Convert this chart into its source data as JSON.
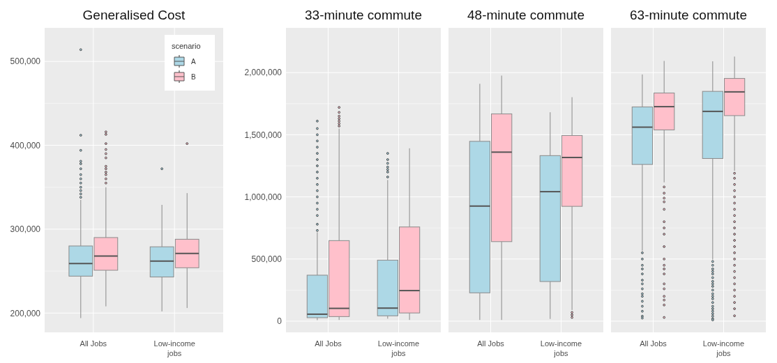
{
  "chart_data": [
    {
      "type": "box",
      "title": "Generalised Cost",
      "categories": [
        "All Jobs",
        "Low-income jobs"
      ],
      "ylim": [
        177000,
        540000
      ],
      "yticks": [
        {
          "value": 200000,
          "label": "200,000"
        },
        {
          "value": 300000,
          "label": "300,000"
        },
        {
          "value": 400000,
          "label": "400,000"
        },
        {
          "value": 500000,
          "label": "500,000"
        }
      ],
      "grid": true,
      "legend": "top right",
      "legend_title": "scenario",
      "series": [
        {
          "name": "A",
          "color": "#add8e6",
          "boxes": [
            {
              "low": 194000,
              "q1": 244000,
              "median": 259000,
              "q3": 280000,
              "high": 335000,
              "outliers": [
                338000,
                342000,
                346000,
                350000,
                355000,
                360000,
                365000,
                372000,
                378000,
                381000,
                394000,
                412000,
                514000
              ]
            },
            {
              "low": 202000,
              "q1": 243000,
              "median": 262000,
              "q3": 279000,
              "high": 329000,
              "outliers": [
                372000
              ]
            }
          ]
        },
        {
          "name": "B",
          "color": "#ffc0cb",
          "boxes": [
            {
              "low": 208000,
              "q1": 251000,
              "median": 268000,
              "q3": 290000,
              "high": 350000,
              "outliers": [
                355000,
                360000,
                365000,
                368000,
                372000,
                375000,
                385000,
                390000,
                395000,
                402000,
                413000,
                416000
              ]
            },
            {
              "low": 206000,
              "q1": 254000,
              "median": 271000,
              "q3": 288000,
              "high": 343000,
              "outliers": [
                402000
              ]
            }
          ]
        }
      ]
    },
    {
      "type": "box",
      "title": "33-minute commute",
      "categories": [
        "All Jobs",
        "Low-income jobs"
      ],
      "ylim": [
        -90000,
        2360000
      ],
      "yticks": [
        {
          "value": 0,
          "label": "0"
        },
        {
          "value": 500000,
          "label": "500,000"
        },
        {
          "value": 1000000,
          "label": "1,000,000"
        },
        {
          "value": 1500000,
          "label": "1,500,000"
        },
        {
          "value": 2000000,
          "label": "2,000,000"
        }
      ],
      "grid": true,
      "series": [
        {
          "color": "#add8e6",
          "boxes": [
            {
              "low": 8000,
              "q1": 28000,
              "median": 56000,
              "q3": 370000,
              "high": 715000,
              "outliers": [
                730000,
                780000,
                850000,
                900000,
                950000,
                1000000,
                1050000,
                1100000,
                1150000,
                1200000,
                1250000,
                1300000,
                1350000,
                1400000,
                1450000,
                1500000,
                1550000,
                1610000
              ]
            },
            {
              "low": 20000,
              "q1": 43000,
              "median": 105000,
              "q3": 491000,
              "high": 1136000,
              "outliers": [
                1160000,
                1200000,
                1220000,
                1240000,
                1270000,
                1300000,
                1350000
              ]
            }
          ]
        },
        {
          "color": "#ffc0cb",
          "boxes": [
            {
              "low": 10000,
              "q1": 37000,
              "median": 103000,
              "q3": 648000,
              "high": 1550000,
              "outliers": [
                1570000,
                1590000,
                1610000,
                1630000,
                1650000,
                1680000,
                1720000
              ]
            },
            {
              "low": 10000,
              "q1": 66000,
              "median": 246000,
              "q3": 758000,
              "high": 1391000
            }
          ]
        }
      ]
    },
    {
      "type": "box",
      "title": "48-minute commute",
      "categories": [
        "All Jobs",
        "Low-income jobs"
      ],
      "ylim": [
        -90000,
        2360000
      ],
      "yticks": [
        {
          "value": 0,
          "label": null
        },
        {
          "value": 500000,
          "label": null
        },
        {
          "value": 1000000,
          "label": null
        },
        {
          "value": 1500000,
          "label": null
        },
        {
          "value": 2000000,
          "label": null
        }
      ],
      "grid": true,
      "tick_labels": "x",
      "series": [
        {
          "color": "#add8e6",
          "boxes": [
            {
              "low": 10000,
              "q1": 228000,
              "median": 926000,
              "q3": 1447000,
              "high": 1910000
            },
            {
              "low": 18000,
              "q1": 319000,
              "median": 1042000,
              "q3": 1332000,
              "high": 1681000
            }
          ]
        },
        {
          "color": "#ffc0cb",
          "boxes": [
            {
              "low": 10000,
              "q1": 640000,
              "median": 1360000,
              "q3": 1668000,
              "high": 1976000
            },
            {
              "low": 90000,
              "q1": 924000,
              "median": 1317000,
              "q3": 1494000,
              "high": 1802000,
              "outliers": [
                70000,
                50000,
                30000
              ]
            }
          ]
        }
      ]
    },
    {
      "type": "box",
      "title": "63-minute commute",
      "categories": [
        "All Jobs",
        "Low-income jobs"
      ],
      "ylim": [
        -90000,
        2360000
      ],
      "yticks": [
        {
          "value": 0,
          "label": null
        },
        {
          "value": 500000,
          "label": null
        },
        {
          "value": 1000000,
          "label": null
        },
        {
          "value": 1500000,
          "label": null
        },
        {
          "value": 2000000,
          "label": null
        }
      ],
      "grid": true,
      "tick_labels": "x",
      "series": [
        {
          "color": "#add8e6",
          "boxes": [
            {
              "low": 566000,
              "q1": 1261000,
              "median": 1561000,
              "q3": 1724000,
              "high": 1985000,
              "outliers": [
                550000,
                500000,
                450000,
                420000,
                380000,
                330000,
                300000,
                260000,
                220000,
                200000,
                160000,
                120000,
                80000,
                40000,
                25000
              ]
            },
            {
              "low": 495000,
              "q1": 1309000,
              "median": 1688000,
              "q3": 1849000,
              "high": 2091000,
              "outliers": [
                480000,
                450000,
                420000,
                400000,
                380000,
                350000,
                320000,
                300000,
                280000,
                250000,
                220000,
                200000,
                180000,
                150000,
                120000,
                100000,
                80000,
                60000,
                40000,
                20000,
                10000
              ]
            }
          ]
        },
        {
          "color": "#ffc0cb",
          "boxes": [
            {
              "low": 1117000,
              "q1": 1539000,
              "median": 1726000,
              "q3": 1836000,
              "high": 2094000,
              "outliers": [
                1080000,
                1030000,
                990000,
                960000,
                900000,
                800000,
                750000,
                700000,
                600000,
                500000,
                450000,
                420000,
                380000,
                300000,
                260000,
                200000,
                170000,
                130000,
                30000
              ]
            },
            {
              "low": 1210000,
              "q1": 1654000,
              "median": 1845000,
              "q3": 1953000,
              "high": 2129000,
              "outliers": [
                1190000,
                1150000,
                1100000,
                1050000,
                1000000,
                950000,
                900000,
                850000,
                800000,
                750000,
                700000,
                650000,
                600000,
                550000,
                500000,
                450000,
                400000,
                350000,
                300000,
                250000,
                200000,
                150000,
                100000,
                43000
              ]
            }
          ]
        }
      ]
    }
  ]
}
